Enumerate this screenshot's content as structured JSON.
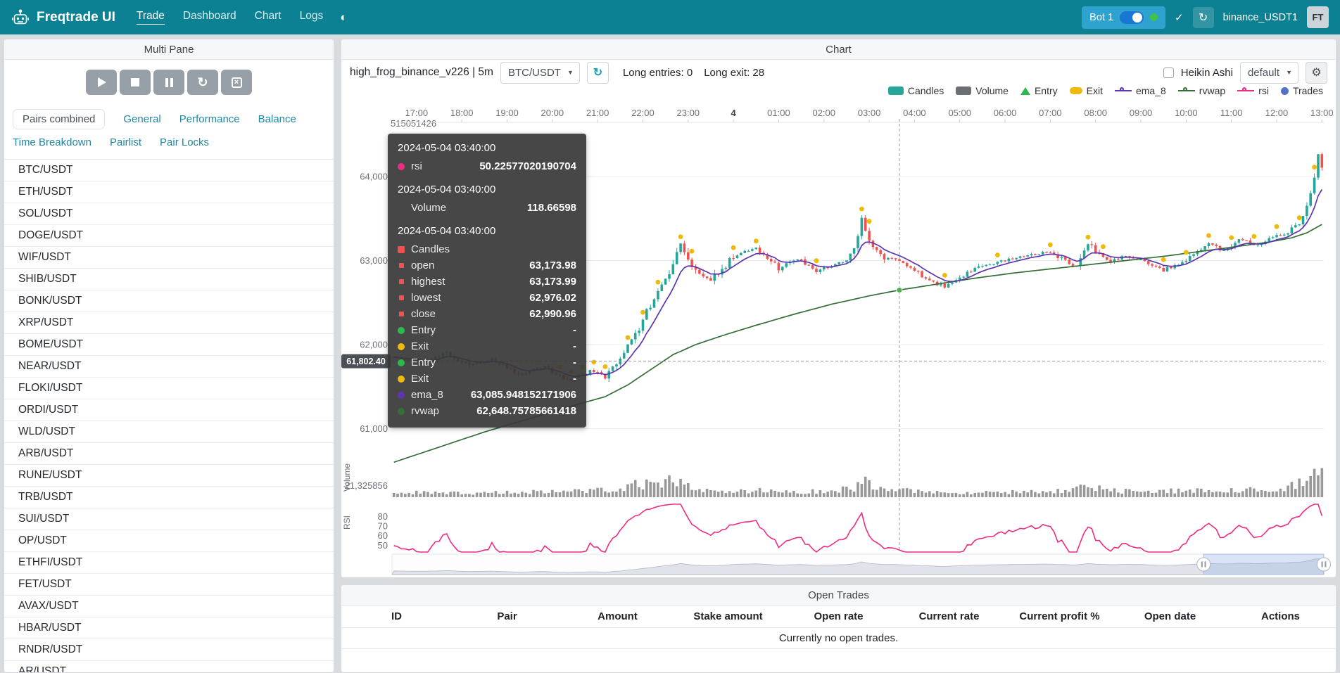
{
  "theme": {
    "navbar": "#0c8193",
    "accent": "#2187a5",
    "up": "#26a69a",
    "down": "#ef5350",
    "volume_bar": "#8d8d8d",
    "ema8": "#5e35b1",
    "rvwap": "#356e36",
    "rsi": "#ed2d84",
    "exit": "#edba0d",
    "entry": "#2db84d",
    "trades": "#5470c6"
  },
  "navbar": {
    "brand": "Freqtrade UI",
    "links": [
      {
        "label": "Trade",
        "active": true
      },
      {
        "label": "Dashboard",
        "active": false
      },
      {
        "label": "Chart",
        "active": false
      },
      {
        "label": "Logs",
        "active": false
      }
    ],
    "bot_chip_label": "Bot 1",
    "bot_online": true,
    "bot_name": "binance_USDT1",
    "avatar_initials": "FT"
  },
  "multi_pane": {
    "title": "Multi Pane",
    "tabs": [
      {
        "label": "Pairs combined",
        "active": true,
        "row": 1
      },
      {
        "label": "General",
        "active": false,
        "row": 1
      },
      {
        "label": "Performance",
        "active": false,
        "row": 1
      },
      {
        "label": "Balance",
        "active": false,
        "row": 1
      },
      {
        "label": "Time Breakdown",
        "active": false,
        "row": 2
      },
      {
        "label": "Pairlist",
        "active": false,
        "row": 2
      },
      {
        "label": "Pair Locks",
        "active": false,
        "row": 2
      }
    ],
    "pairs": [
      "BTC/USDT",
      "ETH/USDT",
      "SOL/USDT",
      "DOGE/USDT",
      "WIF/USDT",
      "SHIB/USDT",
      "BONK/USDT",
      "XRP/USDT",
      "BOME/USDT",
      "NEAR/USDT",
      "FLOKI/USDT",
      "ORDI/USDT",
      "WLD/USDT",
      "ARB/USDT",
      "RUNE/USDT",
      "TRB/USDT",
      "SUI/USDT",
      "OP/USDT",
      "ETHFI/USDT",
      "FET/USDT",
      "AVAX/USDT",
      "HBAR/USDT",
      "RNDR/USDT",
      "AR/USDT"
    ]
  },
  "chart_panel": {
    "title": "Chart",
    "strategy_label": "high_frog_binance_v226 | 5m",
    "pair_select_value": "BTC/USDT",
    "long_entries_label": "Long entries: 0",
    "long_exit_label": "Long exit: 28",
    "heikin_ashi_label": "Heikin Ashi",
    "plot_config_value": "default",
    "legend": [
      {
        "label": "Candles",
        "icon": "rect",
        "color": "#26a69a"
      },
      {
        "label": "Volume",
        "icon": "rect",
        "color": "#6b6f73"
      },
      {
        "label": "Entry",
        "icon": "triangle",
        "color": "#2db84d"
      },
      {
        "label": "Exit",
        "icon": "capsule",
        "color": "#edba0d"
      },
      {
        "label": "ema_8",
        "icon": "line",
        "color": "#5e35b1"
      },
      {
        "label": "rvwap",
        "icon": "line",
        "color": "#356e36"
      },
      {
        "label": "rsi",
        "icon": "line",
        "color": "#ed2d84"
      },
      {
        "label": "Trades",
        "icon": "circle",
        "color": "#5470c6"
      }
    ]
  },
  "tooltip": {
    "sections": [
      {
        "time": "2024-05-04 03:40:00",
        "rows": [
          {
            "shape": "circle",
            "color": "#ed2d84",
            "label": "rsi",
            "value": "50.22577020190704"
          }
        ]
      },
      {
        "time": "2024-05-04 03:40:00",
        "rows": [
          {
            "shape": null,
            "color": null,
            "label": "Volume",
            "value": "118.66598"
          }
        ]
      },
      {
        "time": "2024-05-04 03:40:00",
        "rows": [
          {
            "shape": "square",
            "color": "#ef5350",
            "label": "Candles",
            "value": ""
          },
          {
            "shape": "square-small",
            "color": "#ef5350",
            "label": "open",
            "value": "63,173.98"
          },
          {
            "shape": "square-small",
            "color": "#ef5350",
            "label": "highest",
            "value": "63,173.99"
          },
          {
            "shape": "square-small",
            "color": "#ef5350",
            "label": "lowest",
            "value": "62,976.02"
          },
          {
            "shape": "square-small",
            "color": "#ef5350",
            "label": "close",
            "value": "62,990.96"
          },
          {
            "shape": "circle",
            "color": "#2db84d",
            "label": "Entry",
            "value": "-"
          },
          {
            "shape": "circle",
            "color": "#edba0d",
            "label": "Exit",
            "value": "-"
          },
          {
            "shape": "circle",
            "color": "#2db84d",
            "label": "Entry",
            "value": "-"
          },
          {
            "shape": "circle",
            "color": "#edba0d",
            "label": "Exit",
            "value": "-"
          },
          {
            "shape": "circle",
            "color": "#5e35b1",
            "label": "ema_8",
            "value": "63,085.948152171906"
          },
          {
            "shape": "circle",
            "color": "#356e36",
            "label": "rvwap",
            "value": "62,648.75785661418"
          }
        ]
      }
    ]
  },
  "chart_data": {
    "type": "candlestick",
    "pair": "BTC/USDT",
    "timeframe": "5m",
    "candle_count": 247,
    "x_ticks": [
      "17:00",
      "18:00",
      "19:00",
      "20:00",
      "21:00",
      "22:00",
      "23:00",
      "4",
      "01:00",
      "02:00",
      "03:00",
      "04:00",
      "05:00",
      "06:00",
      "07:00",
      "08:00",
      "09:00",
      "10:00",
      "11:00",
      "12:00",
      "13:00"
    ],
    "y_axis_top_label": "515051426",
    "price_ticks": [
      64000,
      63000,
      62000,
      61000
    ],
    "price_tick_labels": [
      "64,000",
      "63,000",
      "62,000",
      "61,000"
    ],
    "volume_axis_label": "21,325856",
    "rsi_ticks": [
      80,
      70,
      60,
      50
    ],
    "pane_labels": {
      "volume": "Volume",
      "rsi": "RSI"
    },
    "close_anchors": [
      [
        0,
        61850
      ],
      [
        8,
        61790
      ],
      [
        14,
        61900
      ],
      [
        20,
        61740
      ],
      [
        26,
        61820
      ],
      [
        34,
        61630
      ],
      [
        40,
        61750
      ],
      [
        46,
        61570
      ],
      [
        52,
        61690
      ],
      [
        56,
        61610
      ],
      [
        60,
        61850
      ],
      [
        64,
        62100
      ],
      [
        66,
        62300
      ],
      [
        70,
        62620
      ],
      [
        74,
        62950
      ],
      [
        76,
        63180
      ],
      [
        78,
        63050
      ],
      [
        80,
        62850
      ],
      [
        84,
        62760
      ],
      [
        88,
        62950
      ],
      [
        90,
        63060
      ],
      [
        96,
        63140
      ],
      [
        100,
        62980
      ],
      [
        102,
        62900
      ],
      [
        106,
        62990
      ],
      [
        108,
        63010
      ],
      [
        112,
        62870
      ],
      [
        116,
        62950
      ],
      [
        120,
        63000
      ],
      [
        123,
        63280
      ],
      [
        124,
        63550
      ],
      [
        126,
        63220
      ],
      [
        130,
        63050
      ],
      [
        134,
        62990
      ],
      [
        138,
        62900
      ],
      [
        142,
        62760
      ],
      [
        146,
        62690
      ],
      [
        150,
        62800
      ],
      [
        156,
        62940
      ],
      [
        162,
        63000
      ],
      [
        168,
        63060
      ],
      [
        174,
        63110
      ],
      [
        178,
        62990
      ],
      [
        181,
        62930
      ],
      [
        184,
        63190
      ],
      [
        187,
        63060
      ],
      [
        190,
        62990
      ],
      [
        194,
        63050
      ],
      [
        198,
        63000
      ],
      [
        204,
        62890
      ],
      [
        208,
        62960
      ],
      [
        212,
        63090
      ],
      [
        216,
        63190
      ],
      [
        220,
        63120
      ],
      [
        224,
        63260
      ],
      [
        228,
        63170
      ],
      [
        232,
        63250
      ],
      [
        236,
        63320
      ],
      [
        240,
        63430
      ],
      [
        242,
        63650
      ],
      [
        244,
        63980
      ],
      [
        245,
        64280
      ],
      [
        246,
        64100
      ]
    ],
    "rvwap_anchors": [
      [
        0,
        60600
      ],
      [
        12,
        60780
      ],
      [
        24,
        60960
      ],
      [
        36,
        61120
      ],
      [
        48,
        61280
      ],
      [
        56,
        61380
      ],
      [
        62,
        61520
      ],
      [
        68,
        61700
      ],
      [
        74,
        61880
      ],
      [
        80,
        62000
      ],
      [
        88,
        62120
      ],
      [
        96,
        62230
      ],
      [
        106,
        62360
      ],
      [
        116,
        62480
      ],
      [
        126,
        62580
      ],
      [
        134,
        62649
      ],
      [
        144,
        62720
      ],
      [
        154,
        62790
      ],
      [
        164,
        62850
      ],
      [
        174,
        62900
      ],
      [
        184,
        62950
      ],
      [
        194,
        63000
      ],
      [
        204,
        63050
      ],
      [
        214,
        63110
      ],
      [
        224,
        63170
      ],
      [
        232,
        63220
      ],
      [
        238,
        63270
      ],
      [
        242,
        63330
      ],
      [
        246,
        63430
      ]
    ],
    "volume_profile": [
      [
        0,
        0.18
      ],
      [
        20,
        0.15
      ],
      [
        40,
        0.2
      ],
      [
        52,
        0.22
      ],
      [
        58,
        0.3
      ],
      [
        64,
        0.45
      ],
      [
        68,
        0.55
      ],
      [
        72,
        0.6
      ],
      [
        76,
        0.5
      ],
      [
        80,
        0.35
      ],
      [
        86,
        0.22
      ],
      [
        96,
        0.25
      ],
      [
        106,
        0.2
      ],
      [
        116,
        0.22
      ],
      [
        122,
        0.35
      ],
      [
        124,
        0.7
      ],
      [
        126,
        0.45
      ],
      [
        130,
        0.25
      ],
      [
        134,
        0.28
      ],
      [
        140,
        0.2
      ],
      [
        150,
        0.16
      ],
      [
        160,
        0.18
      ],
      [
        170,
        0.2
      ],
      [
        178,
        0.22
      ],
      [
        184,
        0.5
      ],
      [
        188,
        0.28
      ],
      [
        196,
        0.2
      ],
      [
        204,
        0.22
      ],
      [
        212,
        0.25
      ],
      [
        220,
        0.22
      ],
      [
        228,
        0.28
      ],
      [
        234,
        0.3
      ],
      [
        238,
        0.4
      ],
      [
        241,
        0.55
      ],
      [
        243,
        0.75
      ],
      [
        245,
        0.95
      ],
      [
        246,
        0.85
      ]
    ],
    "exit_marker_indices": [
      44,
      47,
      50,
      53,
      56,
      62,
      66,
      70,
      76,
      79,
      90,
      96,
      112,
      124,
      126,
      146,
      160,
      174,
      184,
      188,
      204,
      210,
      216,
      222,
      228,
      234,
      240,
      244
    ],
    "crosshair": {
      "index": 134,
      "price": 61802.4,
      "price_label": "61,802.40"
    },
    "hover_rvwap": 62648.75785661418,
    "slider": {
      "start_frac": 0.871,
      "end_frac": 1.0
    }
  },
  "open_trades": {
    "title": "Open Trades",
    "columns": [
      "ID",
      "Pair",
      "Amount",
      "Stake amount",
      "Open rate",
      "Current rate",
      "Current profit %",
      "Open date",
      "Actions"
    ],
    "empty_message": "Currently no open trades."
  }
}
